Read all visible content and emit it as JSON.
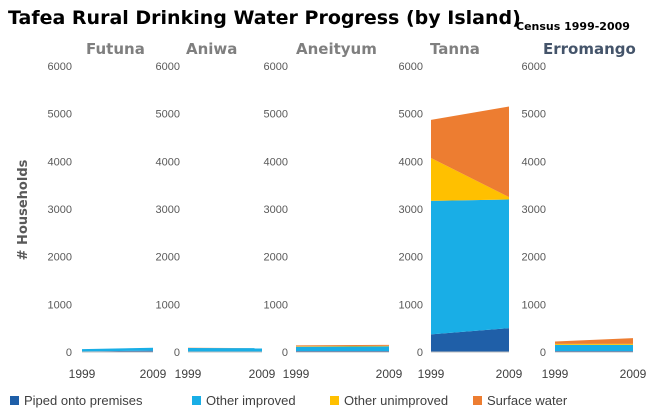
{
  "chart_data": {
    "type": "area",
    "title": "Tafea Rural Drinking Water Progress (by Island)",
    "subtitle": "Census 1999-2009",
    "ylabel": "# Households",
    "ylim": [
      0,
      6000
    ],
    "yticks": [
      0,
      1000,
      2000,
      3000,
      4000,
      5000,
      6000
    ],
    "stacked": true,
    "legend_position": "bottom",
    "series_names": [
      "Piped onto premises",
      "Other improved",
      "Other unimproved",
      "Surface water"
    ],
    "series_colors": [
      "#1f5fa8",
      "#19aee6",
      "#ffc000",
      "#ed7d31"
    ],
    "panels": [
      {
        "name": "Futuna",
        "title_color": "#7f7f7f",
        "x": [
          "1999",
          "2009"
        ],
        "series": [
          {
            "name": "Piped onto premises",
            "values": [
              10,
              30
            ]
          },
          {
            "name": "Other improved",
            "values": [
              50,
              60
            ]
          },
          {
            "name": "Other unimproved",
            "values": [
              0,
              0
            ]
          },
          {
            "name": "Surface water",
            "values": [
              0,
              0
            ]
          }
        ]
      },
      {
        "name": "Aniwa",
        "title_color": "#7f7f7f",
        "x": [
          "1999",
          "2009"
        ],
        "series": [
          {
            "name": "Piped onto premises",
            "values": [
              5,
              5
            ]
          },
          {
            "name": "Other improved",
            "values": [
              80,
              75
            ]
          },
          {
            "name": "Other unimproved",
            "values": [
              0,
              0
            ]
          },
          {
            "name": "Surface water",
            "values": [
              5,
              0
            ]
          }
        ]
      },
      {
        "name": "Aneityum",
        "title_color": "#7f7f7f",
        "x": [
          "1999",
          "2009"
        ],
        "series": [
          {
            "name": "Piped onto premises",
            "values": [
              20,
              20
            ]
          },
          {
            "name": "Other improved",
            "values": [
              90,
              100
            ]
          },
          {
            "name": "Other unimproved",
            "values": [
              10,
              10
            ]
          },
          {
            "name": "Surface water",
            "values": [
              20,
              20
            ]
          }
        ]
      },
      {
        "name": "Tanna",
        "title_color": "#7f7f7f",
        "x": [
          "1999",
          "2009"
        ],
        "series": [
          {
            "name": "Piped onto premises",
            "values": [
              370,
              500
            ]
          },
          {
            "name": "Other improved",
            "values": [
              2800,
              2700
            ]
          },
          {
            "name": "Other unimproved",
            "values": [
              900,
              50
            ]
          },
          {
            "name": "Surface water",
            "values": [
              800,
              1900
            ]
          }
        ]
      },
      {
        "name": "Erromango",
        "title_color": "#44546a",
        "x": [
          "1999",
          "2009"
        ],
        "series": [
          {
            "name": "Piped onto premises",
            "values": [
              20,
              20
            ]
          },
          {
            "name": "Other improved",
            "values": [
              130,
              130
            ]
          },
          {
            "name": "Other unimproved",
            "values": [
              20,
              20
            ]
          },
          {
            "name": "Surface water",
            "values": [
              50,
              120
            ]
          }
        ]
      }
    ]
  }
}
